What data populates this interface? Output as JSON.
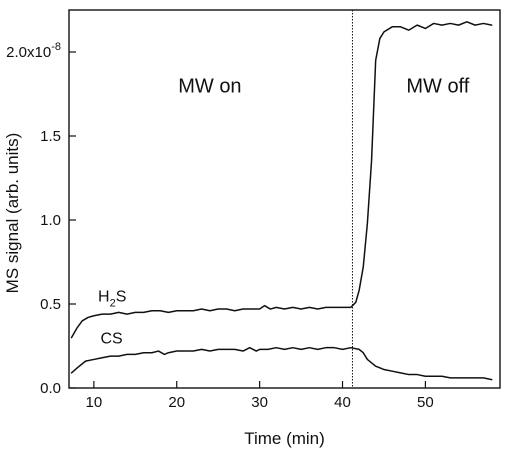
{
  "chart_data": {
    "type": "line",
    "xlabel": "Time (min)",
    "ylabel": "MS signal (arb. units)",
    "xlim": [
      7,
      59
    ],
    "ylim": [
      0,
      2.25
    ],
    "x_ticks": [
      10,
      20,
      30,
      40,
      50
    ],
    "y_ticks": [
      {
        "value": 0.0,
        "label": "0.0"
      },
      {
        "value": 0.5,
        "label": "0.5"
      },
      {
        "value": 1.0,
        "label": "1.0"
      },
      {
        "value": 1.5,
        "label": "1.5"
      },
      {
        "value": 2.0,
        "label": "2.0x10",
        "exponent": "-8"
      }
    ],
    "grid": false,
    "annotations": [
      {
        "text": "MW on",
        "x": 24,
        "y": 1.8
      },
      {
        "text": "MW off",
        "x": 51.5,
        "y": 1.8
      }
    ],
    "reference_lines": [
      {
        "axis": "x",
        "value": 41.2,
        "style": "dotted"
      }
    ],
    "series": [
      {
        "name_base": "H",
        "name_subscript": "2",
        "name_tail": "S",
        "label_x": 10.5,
        "label_y": 0.55,
        "color": "#111111",
        "points": [
          [
            7.3,
            0.3
          ],
          [
            8,
            0.36
          ],
          [
            8.6,
            0.4
          ],
          [
            9.3,
            0.42
          ],
          [
            10,
            0.43
          ],
          [
            11,
            0.44
          ],
          [
            12,
            0.44
          ],
          [
            13,
            0.45
          ],
          [
            14,
            0.44
          ],
          [
            15,
            0.45
          ],
          [
            16,
            0.45
          ],
          [
            17,
            0.46
          ],
          [
            18,
            0.46
          ],
          [
            19,
            0.45
          ],
          [
            20,
            0.46
          ],
          [
            21,
            0.46
          ],
          [
            22,
            0.46
          ],
          [
            23,
            0.47
          ],
          [
            24,
            0.46
          ],
          [
            25,
            0.47
          ],
          [
            26,
            0.47
          ],
          [
            27,
            0.46
          ],
          [
            28,
            0.47
          ],
          [
            29,
            0.47
          ],
          [
            30,
            0.47
          ],
          [
            30.6,
            0.49
          ],
          [
            31.3,
            0.47
          ],
          [
            32,
            0.48
          ],
          [
            33,
            0.47
          ],
          [
            34,
            0.48
          ],
          [
            35,
            0.47
          ],
          [
            36,
            0.48
          ],
          [
            37,
            0.47
          ],
          [
            38,
            0.48
          ],
          [
            39,
            0.48
          ],
          [
            40,
            0.48
          ],
          [
            41,
            0.48
          ],
          [
            41.6,
            0.51
          ],
          [
            42,
            0.58
          ],
          [
            42.5,
            0.72
          ],
          [
            43,
            0.98
          ],
          [
            43.5,
            1.35
          ],
          [
            44,
            1.95
          ],
          [
            44.5,
            2.08
          ],
          [
            45,
            2.12
          ],
          [
            46,
            2.15
          ],
          [
            47,
            2.15
          ],
          [
            48,
            2.13
          ],
          [
            49,
            2.16
          ],
          [
            50,
            2.14
          ],
          [
            51,
            2.17
          ],
          [
            52,
            2.16
          ],
          [
            53,
            2.17
          ],
          [
            54,
            2.16
          ],
          [
            55,
            2.18
          ],
          [
            56,
            2.16
          ],
          [
            57,
            2.17
          ],
          [
            58,
            2.16
          ]
        ]
      },
      {
        "name": "CS",
        "label_x": 10.8,
        "label_y": 0.3,
        "color": "#111111",
        "points": [
          [
            7.3,
            0.09
          ],
          [
            8,
            0.12
          ],
          [
            9,
            0.16
          ],
          [
            10,
            0.17
          ],
          [
            11,
            0.18
          ],
          [
            12,
            0.19
          ],
          [
            13,
            0.19
          ],
          [
            14,
            0.2
          ],
          [
            15,
            0.2
          ],
          [
            16,
            0.21
          ],
          [
            17,
            0.21
          ],
          [
            17.8,
            0.22
          ],
          [
            18.5,
            0.2
          ],
          [
            19,
            0.21
          ],
          [
            20,
            0.22
          ],
          [
            21,
            0.22
          ],
          [
            22,
            0.22
          ],
          [
            23,
            0.23
          ],
          [
            24,
            0.22
          ],
          [
            25,
            0.23
          ],
          [
            26,
            0.23
          ],
          [
            27,
            0.23
          ],
          [
            28,
            0.22
          ],
          [
            28.8,
            0.24
          ],
          [
            29.6,
            0.22
          ],
          [
            30,
            0.23
          ],
          [
            31,
            0.23
          ],
          [
            32,
            0.24
          ],
          [
            33,
            0.23
          ],
          [
            34,
            0.24
          ],
          [
            35,
            0.23
          ],
          [
            36,
            0.24
          ],
          [
            37,
            0.23
          ],
          [
            38,
            0.24
          ],
          [
            39,
            0.24
          ],
          [
            40,
            0.23
          ],
          [
            41,
            0.24
          ],
          [
            42,
            0.23
          ],
          [
            42.5,
            0.21
          ],
          [
            43,
            0.17
          ],
          [
            44,
            0.13
          ],
          [
            45,
            0.11
          ],
          [
            46,
            0.1
          ],
          [
            47,
            0.09
          ],
          [
            48,
            0.08
          ],
          [
            49,
            0.08
          ],
          [
            50,
            0.07
          ],
          [
            51,
            0.07
          ],
          [
            52,
            0.07
          ],
          [
            53,
            0.06
          ],
          [
            54,
            0.06
          ],
          [
            55,
            0.06
          ],
          [
            56,
            0.06
          ],
          [
            57,
            0.06
          ],
          [
            58,
            0.05
          ]
        ]
      }
    ]
  }
}
